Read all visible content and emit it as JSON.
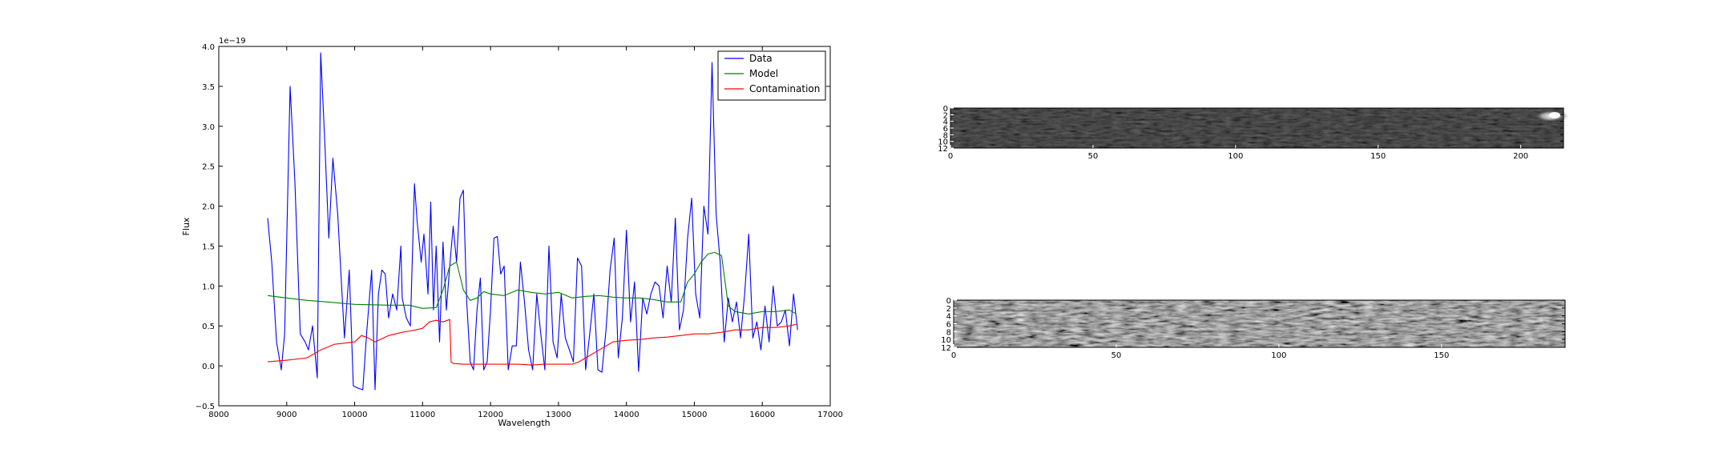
{
  "chart_data": [
    {
      "type": "line",
      "xlabel": "Wavelength",
      "ylabel": "Flux",
      "offset_label": "1e−19",
      "xlim": [
        8000,
        17000
      ],
      "ylim": [
        -0.5,
        4.0
      ],
      "xticks": [
        8000,
        9000,
        10000,
        11000,
        12000,
        13000,
        14000,
        15000,
        16000,
        17000
      ],
      "xtick_labels": [
        "8000",
        "9000",
        "10000",
        "11000",
        "12000",
        "13000",
        "14000",
        "15000",
        "16000",
        "17000"
      ],
      "yticks": [
        -0.5,
        0.0,
        0.5,
        1.0,
        1.5,
        2.0,
        2.5,
        3.0,
        3.5,
        4.0
      ],
      "ytick_labels": [
        "−0.5",
        "0.0",
        "0.5",
        "1.0",
        "1.5",
        "2.0",
        "2.5",
        "3.0",
        "3.5",
        "4.0"
      ],
      "legend": {
        "placement": "top-right"
      },
      "grid": false,
      "series": [
        {
          "name": "Data",
          "color": "#0000ff",
          "x": [
            8720,
            8780,
            8850,
            8920,
            8970,
            9050,
            9120,
            9200,
            9270,
            9320,
            9380,
            9450,
            9500,
            9560,
            9620,
            9680,
            9750,
            9850,
            9920,
            9980,
            10050,
            10120,
            10180,
            10250,
            10300,
            10350,
            10400,
            10450,
            10500,
            10560,
            10620,
            10680,
            10700,
            10760,
            10820,
            10880,
            10920,
            10980,
            11020,
            11080,
            11120,
            11160,
            11200,
            11250,
            11300,
            11350,
            11400,
            11450,
            11500,
            11550,
            11600,
            11650,
            11700,
            11750,
            11800,
            11850,
            11900,
            11950,
            12000,
            12050,
            12100,
            12150,
            12200,
            12260,
            12320,
            12380,
            12440,
            12500,
            12560,
            12620,
            12680,
            12740,
            12800,
            12860,
            12920,
            12980,
            13040,
            13100,
            13160,
            13220,
            13280,
            13340,
            13400,
            13460,
            13520,
            13580,
            13640,
            13700,
            13760,
            13820,
            13880,
            13940,
            14000,
            14060,
            14120,
            14180,
            14240,
            14300,
            14360,
            14420,
            14480,
            14540,
            14600,
            14660,
            14720,
            14780,
            14840,
            14900,
            14960,
            15020,
            15080,
            15140,
            15200,
            15260,
            15320,
            15380,
            15440,
            15500,
            15560,
            15620,
            15680,
            15740,
            15800,
            15860,
            15920,
            15980,
            16040,
            16100,
            16160,
            16220,
            16280,
            16340,
            16400,
            16460,
            16520
          ],
          "y": [
            1.85,
            1.3,
            0.3,
            -0.05,
            0.4,
            3.5,
            2.3,
            0.4,
            0.3,
            0.2,
            0.5,
            -0.15,
            3.92,
            2.8,
            1.6,
            2.6,
            1.9,
            0.35,
            1.2,
            -0.25,
            -0.28,
            -0.3,
            0.45,
            1.2,
            -0.3,
            0.9,
            1.2,
            1.15,
            0.6,
            0.9,
            0.7,
            1.5,
            0.85,
            0.6,
            0.5,
            2.28,
            1.8,
            1.3,
            1.65,
            0.9,
            2.05,
            0.7,
            1.5,
            0.3,
            1.55,
            0.7,
            1.25,
            1.75,
            1.3,
            2.1,
            2.2,
            0.8,
            0.05,
            -0.05,
            0.7,
            1.1,
            -0.05,
            0.05,
            0.7,
            1.6,
            1.62,
            1.15,
            1.25,
            -0.05,
            0.25,
            0.25,
            1.3,
            0.8,
            0.2,
            -0.05,
            0.9,
            0.4,
            -0.05,
            1.5,
            0.3,
            0.1,
            0.9,
            0.35,
            0.2,
            0.05,
            1.35,
            1.25,
            -0.05,
            0.4,
            0.9,
            -0.05,
            -0.08,
            0.45,
            1.2,
            1.6,
            0.1,
            0.6,
            1.7,
            0.55,
            1.05,
            -0.07,
            0.85,
            0.65,
            0.9,
            1.05,
            1.0,
            0.6,
            1.25,
            0.8,
            1.85,
            0.45,
            0.7,
            1.6,
            2.1,
            0.9,
            0.6,
            2.0,
            1.65,
            3.8,
            1.9,
            1.3,
            0.3,
            0.85,
            0.55,
            0.8,
            0.35,
            0.9,
            1.65,
            0.35,
            0.55,
            0.2,
            0.75,
            0.3,
            1.0,
            0.5,
            0.55,
            0.7,
            0.25,
            0.9,
            0.45
          ],
          "y_note": "estimated from plotted curve"
        },
        {
          "name": "Model",
          "color": "#008000",
          "x": [
            8720,
            9000,
            9300,
            9600,
            10000,
            10500,
            10800,
            11000,
            11200,
            11300,
            11400,
            11500,
            11600,
            11700,
            11800,
            11900,
            12000,
            12200,
            12400,
            12600,
            12800,
            13000,
            13200,
            13400,
            13600,
            13800,
            14000,
            14200,
            14400,
            14600,
            14800,
            14900,
            15000,
            15100,
            15200,
            15300,
            15400,
            15500,
            15600,
            15800,
            16000,
            16200,
            16400,
            16500
          ],
          "y": [
            0.88,
            0.85,
            0.82,
            0.8,
            0.77,
            0.76,
            0.76,
            0.72,
            0.73,
            0.95,
            1.25,
            1.3,
            0.95,
            0.82,
            0.85,
            0.93,
            0.9,
            0.88,
            0.95,
            0.92,
            0.9,
            0.92,
            0.85,
            0.87,
            0.88,
            0.86,
            0.85,
            0.85,
            0.83,
            0.8,
            0.8,
            1.05,
            1.15,
            1.3,
            1.4,
            1.42,
            1.38,
            0.75,
            0.68,
            0.65,
            0.68,
            0.68,
            0.7,
            0.65
          ]
        },
        {
          "name": "Contamination",
          "color": "#ff0000",
          "x": [
            8720,
            9000,
            9300,
            9500,
            9700,
            10000,
            10100,
            10200,
            10300,
            10500,
            10700,
            10900,
            11000,
            11100,
            11200,
            11300,
            11400,
            11420,
            11450,
            11600,
            11800,
            12000,
            12200,
            12400,
            12600,
            12800,
            13000,
            13200,
            13300,
            13400,
            13600,
            13800,
            14000,
            14200,
            14400,
            14600,
            14800,
            15000,
            15200,
            15400,
            15600,
            15800,
            16000,
            16200,
            16400,
            16500
          ],
          "y": [
            0.05,
            0.07,
            0.1,
            0.2,
            0.27,
            0.3,
            0.38,
            0.35,
            0.3,
            0.38,
            0.42,
            0.45,
            0.47,
            0.55,
            0.57,
            0.55,
            0.58,
            0.05,
            0.03,
            0.02,
            0.02,
            0.02,
            0.02,
            0.02,
            0.01,
            0.02,
            0.02,
            0.02,
            0.05,
            0.1,
            0.2,
            0.3,
            0.32,
            0.33,
            0.35,
            0.36,
            0.38,
            0.4,
            0.4,
            0.42,
            0.45,
            0.45,
            0.48,
            0.48,
            0.5,
            0.52
          ]
        }
      ]
    },
    {
      "type": "heatmap",
      "colormap": "gray",
      "xlim": [
        0,
        215
      ],
      "ylim": [
        0,
        12
      ],
      "xticks": [
        0,
        50,
        100,
        150,
        200
      ],
      "xtick_labels": [
        "0",
        "50",
        "100",
        "150",
        "200"
      ],
      "yticks": [
        0,
        2,
        4,
        6,
        8,
        10,
        12
      ],
      "ytick_labels": [
        "0",
        "2",
        "4",
        "6",
        "8",
        "10",
        "12"
      ],
      "description_of_content": "mostly black 2D spectrum with a bright source near x≈210, row≈2"
    },
    {
      "type": "heatmap",
      "colormap": "gray",
      "xlim": [
        0,
        188
      ],
      "ylim": [
        0,
        12
      ],
      "xticks": [
        0,
        50,
        100,
        150
      ],
      "xtick_labels": [
        "0",
        "50",
        "100",
        "150"
      ],
      "yticks": [
        0,
        2,
        4,
        6,
        8,
        10,
        12
      ],
      "ytick_labels": [
        "0",
        "2",
        "4",
        "6",
        "8",
        "10",
        "12"
      ]
    }
  ]
}
